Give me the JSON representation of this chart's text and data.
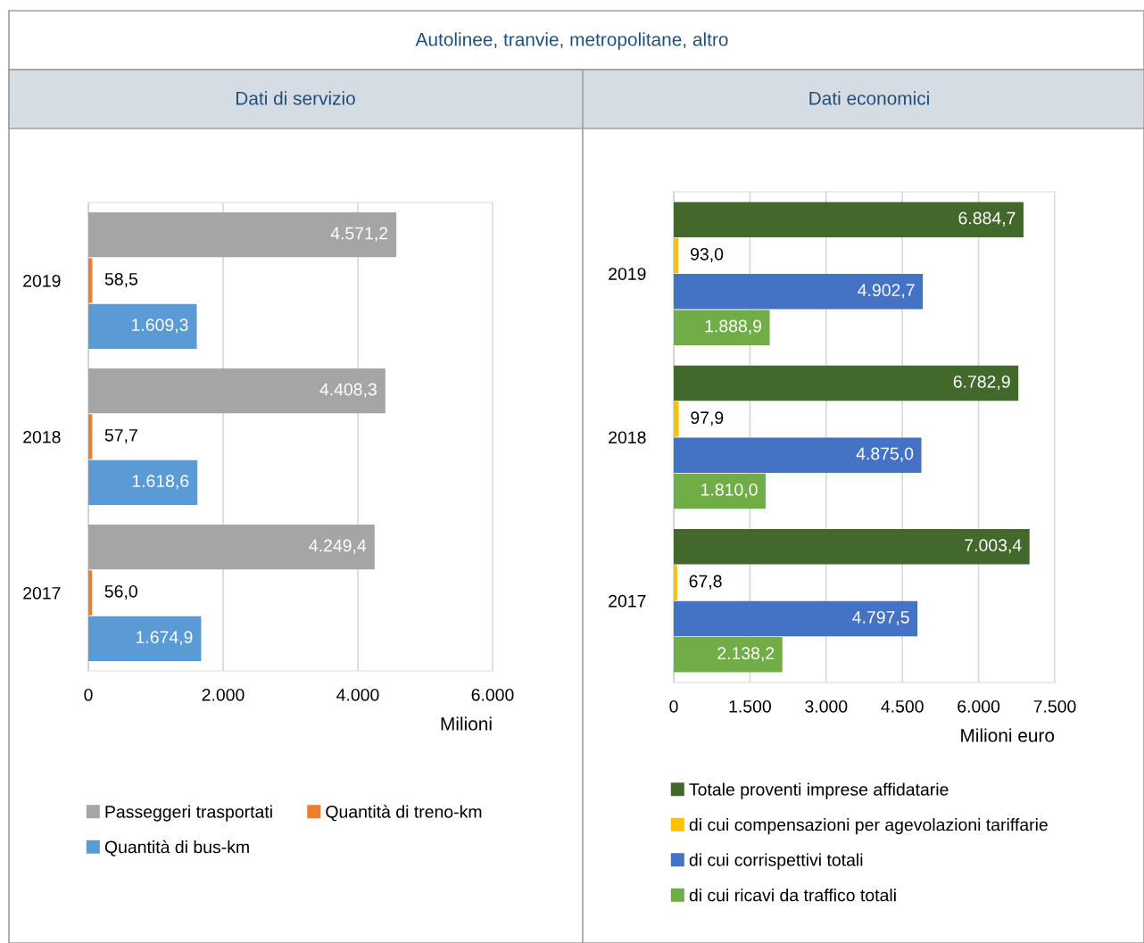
{
  "chart_data": [
    {
      "type": "bar",
      "orientation": "horizontal",
      "title": "Dati di servizio",
      "annotations": [
        "Autolinee, tranvie, metropolitane, altro"
      ],
      "xlabel": "Milioni",
      "categories": [
        "2019",
        "2018",
        "2017"
      ],
      "series": [
        {
          "name": "Passeggeri trasportati",
          "color": "#a5a5a5",
          "values": [
            4571.2,
            4408.3,
            4249.4
          ],
          "value_labels": [
            "4.571,2",
            "4.408,3",
            "4.249,4"
          ]
        },
        {
          "name": "Quantità di treno-km",
          "color": "#ed7d31",
          "values": [
            58.5,
            57.7,
            56.0
          ],
          "value_labels": [
            "58,5",
            "57,7",
            "56,0"
          ]
        },
        {
          "name": "Quantità di bus-km",
          "color": "#5b9bd5",
          "values": [
            1609.3,
            1618.6,
            1674.9
          ],
          "value_labels": [
            "1.609,3",
            "1.618,6",
            "1.674,9"
          ]
        }
      ],
      "xlim": [
        0,
        6000
      ],
      "xticks": [
        0,
        {
          "value": 2000,
          "label": "2.000"
        },
        {
          "value": 4000,
          "label": "4.000"
        },
        {
          "value": 6000,
          "label": "6.000"
        }
      ],
      "grid": "x",
      "legend": "bottom"
    },
    {
      "type": "bar",
      "orientation": "horizontal",
      "title": "Dati economici",
      "xlabel": "Milioni euro",
      "categories": [
        "2019",
        "2018",
        "2017"
      ],
      "series": [
        {
          "name": "Totale proventi imprese affidatarie",
          "color": "#43682b",
          "values": [
            6884.7,
            6782.9,
            7003.4
          ],
          "value_labels": [
            "6.884,7",
            "6.782,9",
            "7.003,4"
          ]
        },
        {
          "name": "di cui compensazioni per agevolazioni tariffarie",
          "color": "#ffc000",
          "values": [
            93.0,
            97.9,
            67.8
          ],
          "value_labels": [
            "93,0",
            "97,9",
            "67,8"
          ]
        },
        {
          "name": "di cui corrispettivi totali",
          "color": "#4472c4",
          "values": [
            4902.7,
            4875.0,
            4797.5
          ],
          "value_labels": [
            "4.902,7",
            "4.875,0",
            "4.797,5"
          ]
        },
        {
          "name": "di cui ricavi da traffico totali",
          "color": "#70ad47",
          "values": [
            1888.9,
            1810.0,
            2138.2
          ],
          "value_labels": [
            "1.888,9",
            "1.810,0",
            "2.138,2"
          ]
        }
      ],
      "xlim": [
        0,
        7500
      ],
      "xticks": [
        0,
        {
          "value": 1500,
          "label": "1.500"
        },
        {
          "value": 3000,
          "label": "3.000"
        },
        {
          "value": 4500,
          "label": "4.500"
        },
        {
          "value": 6000,
          "label": "6.000"
        },
        {
          "value": 7500,
          "label": "7.500"
        }
      ],
      "grid": "x",
      "legend": "bottom"
    }
  ]
}
